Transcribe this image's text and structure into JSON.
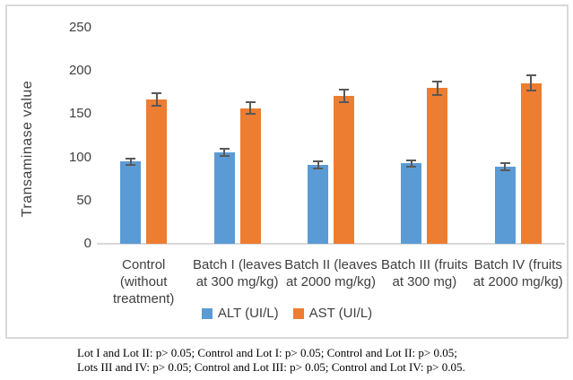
{
  "chart_data": {
    "type": "bar",
    "title": "",
    "xlabel": "",
    "ylabel": "Transaminase value",
    "ylim": [
      0,
      250
    ],
    "yticks": [
      0,
      50,
      100,
      150,
      200,
      250
    ],
    "grid": false,
    "legend_position": "bottom",
    "error_bar_color": "#595959",
    "axis_line_color": "#d9d9d9",
    "categories": [
      "Control (without treatment)",
      "Batch I (leaves at 300 mg/kg)",
      "Batch II (leaves at 2000 mg/kg)",
      "Batch III (fruits at 300 mg)",
      "Batch IV (fruits at 2000 mg/kg)"
    ],
    "category_slugs": [
      "control",
      "batch-i",
      "batch-ii",
      "batch-iii",
      "batch-iv"
    ],
    "series": [
      {
        "name": "ALT (UI/L)",
        "key": "alt",
        "color": "#5B9BD5",
        "values": [
          95,
          106,
          91,
          93,
          89
        ],
        "errors": [
          5,
          5,
          5,
          5,
          5
        ]
      },
      {
        "name": "AST (UI/L)",
        "key": "ast",
        "color": "#ED7D31",
        "values": [
          167,
          157,
          171,
          180,
          186
        ],
        "errors": [
          8,
          8,
          8,
          9,
          10
        ]
      }
    ]
  },
  "caption": {
    "line1": "Lot I and Lot II: p> 0.05; Control and Lot I: p> 0.05; Control and Lot II: p> 0.05;",
    "line2": "Lots III and IV: p> 0.05; Control and Lot III: p> 0.05; Control and Lot IV: p> 0.05."
  }
}
